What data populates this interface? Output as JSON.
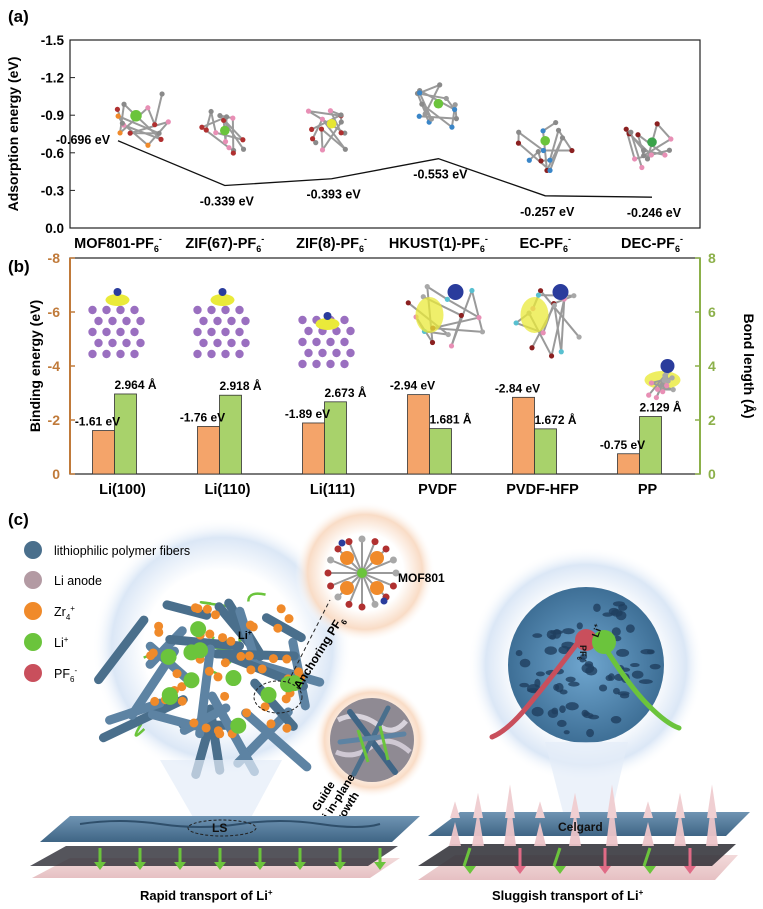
{
  "panels": {
    "a": {
      "label": "(a)"
    },
    "b": {
      "label": "(b)"
    },
    "c": {
      "label": "(c)"
    }
  },
  "chart_data": [
    {
      "type": "line",
      "panel": "a",
      "ylabel": "Adsorption energy (eV)",
      "ylim": [
        0,
        -1.5
      ],
      "yticks": [
        "-1.5",
        "-1.2",
        "-0.9",
        "-0.6",
        "-0.3",
        "0.0"
      ],
      "categories": [
        "MOF801-PF",
        "ZIF(67)-PF",
        "ZIF(8)-PF",
        "HKUST(1)-PF",
        "EC-PF",
        "DEC-PF"
      ],
      "category_sub": "6",
      "category_sup": "-",
      "values": [
        -0.696,
        -0.339,
        -0.393,
        -0.553,
        -0.257,
        -0.246
      ],
      "value_labels": [
        "-0.696 eV",
        "-0.339 eV",
        "-0.393 eV",
        "-0.553 eV",
        "-0.257 eV",
        "-0.246 eV"
      ]
    },
    {
      "type": "bar",
      "panel": "b",
      "categories": [
        "Li(100)",
        "Li(110)",
        "Li(111)",
        "PVDF",
        "PVDF-HFP",
        "PP"
      ],
      "ylabel_left": "Binding energy (eV)",
      "ylabel_right": "Bond length (Å)",
      "ylim_left": [
        0,
        -8
      ],
      "ylim_right": [
        0,
        8
      ],
      "yticks_left": [
        "-8",
        "-6",
        "-4",
        "-2",
        "0"
      ],
      "yticks_right": [
        "8",
        "6",
        "4",
        "2",
        "0"
      ],
      "series": [
        {
          "values": [
            -1.61,
            -1.76,
            -1.89,
            -2.94,
            -2.84,
            -0.75
          ],
          "labels": [
            "-1.61 eV",
            "-1.76 eV",
            "-1.89 eV",
            "-2.94 eV",
            "-2.84 eV",
            "-0.75 eV"
          ],
          "color": "#f4a46a",
          "axis": "left"
        },
        {
          "values": [
            2.964,
            2.918,
            2.673,
            1.681,
            1.672,
            2.129
          ],
          "labels": [
            "2.964 Å",
            "2.918 Å",
            "2.673 Å",
            "1.681 Å",
            "1.672 Å",
            "2.129 Å"
          ],
          "color": "#a8d26b",
          "axis": "right"
        }
      ],
      "left_axis_color": "#c07a3a",
      "right_axis_color": "#8cb04a"
    }
  ],
  "schematic": {
    "legend": [
      {
        "text": "lithiophilic polymer fibers",
        "color": "#4a6f8c"
      },
      {
        "text": "Li anode",
        "color": "#b39aa3"
      },
      {
        "text": "Zr",
        "sub": "4",
        "sup": "+",
        "color": "#f08a2a"
      },
      {
        "text": "Li",
        "sup": "+",
        "color": "#6bc43c"
      },
      {
        "text": "PF",
        "sub": "6",
        "sup": "-",
        "color": "#c94f5c"
      }
    ],
    "mof_label": "MOF801",
    "anchoring_label": "Anchoring PF",
    "anchoring_sub": "6",
    "li_bubble": "Li",
    "li_bubble_sup": "+",
    "guide_lines": [
      "Guide",
      "Li in-plane",
      "growth"
    ],
    "ls_label": "LS",
    "celgard_label": "Celgard",
    "pf_bubble": "PF",
    "pf_bubble_sub": "6",
    "pf_bubble_sup": "-",
    "li_bubble2": "Li",
    "li_bubble2_sup": "+",
    "rapid_caption": "Rapid transport of Li",
    "rapid_sup": "+",
    "sluggish_caption": "Sluggish transport of Li",
    "sluggish_sup": "+"
  },
  "colors": {
    "fiber": "#4a6f8c",
    "zr": "#f08a2a",
    "li": "#6bc43c",
    "pf6": "#c94f5c",
    "halo_blue": "#d9e6f5",
    "halo_orange": "#f8ddc7"
  }
}
